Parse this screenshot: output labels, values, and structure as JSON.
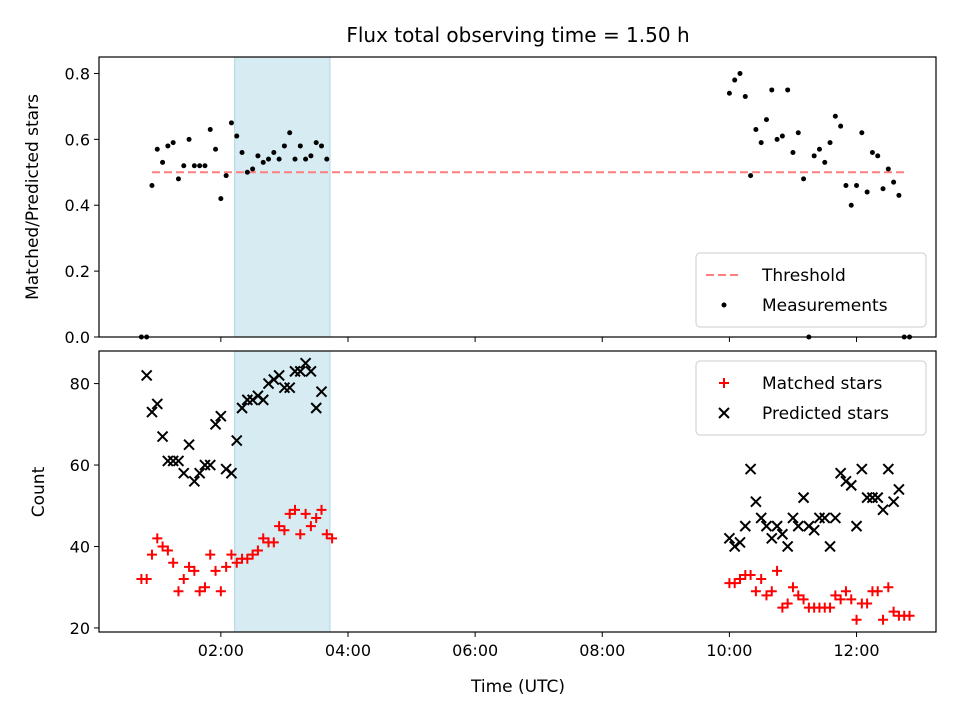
{
  "title": "Flux total observing time = 1.50 h",
  "xlabel": "Time (UTC)",
  "x_ticks": [
    "02:00",
    "04:00",
    "06:00",
    "08:00",
    "10:00",
    "12:00"
  ],
  "highlight_span": [
    "02:13",
    "03:43"
  ],
  "chart_data": [
    {
      "type": "scatter",
      "ylabel": "Matched/Predicted stars",
      "ylim": [
        0,
        0.85
      ],
      "y_ticks": [
        "0.0",
        "0.2",
        "0.4",
        "0.6",
        "0.8"
      ],
      "legend_placement": "lower-right",
      "threshold": {
        "name": "Threshold",
        "value": 0.5,
        "x_range": [
          "00:55",
          "12:45"
        ],
        "color": "#ff7f7f"
      },
      "series": [
        {
          "name": "Measurements",
          "color": "#000000",
          "points": [
            [
              "00:45",
              0.0
            ],
            [
              "00:50",
              0.0
            ],
            [
              "00:55",
              0.46
            ],
            [
              "01:00",
              0.57
            ],
            [
              "01:05",
              0.53
            ],
            [
              "01:10",
              0.58
            ],
            [
              "01:15",
              0.59
            ],
            [
              "01:20",
              0.48
            ],
            [
              "01:25",
              0.52
            ],
            [
              "01:30",
              0.6
            ],
            [
              "01:35",
              0.52
            ],
            [
              "01:40",
              0.52
            ],
            [
              "01:45",
              0.52
            ],
            [
              "01:50",
              0.63
            ],
            [
              "01:55",
              0.57
            ],
            [
              "02:00",
              0.42
            ],
            [
              "02:05",
              0.49
            ],
            [
              "02:10",
              0.65
            ],
            [
              "02:15",
              0.61
            ],
            [
              "02:20",
              0.56
            ],
            [
              "02:25",
              0.5
            ],
            [
              "02:30",
              0.51
            ],
            [
              "02:35",
              0.55
            ],
            [
              "02:40",
              0.53
            ],
            [
              "02:45",
              0.54
            ],
            [
              "02:50",
              0.56
            ],
            [
              "02:55",
              0.54
            ],
            [
              "03:00",
              0.58
            ],
            [
              "03:05",
              0.62
            ],
            [
              "03:10",
              0.54
            ],
            [
              "03:15",
              0.58
            ],
            [
              "03:20",
              0.54
            ],
            [
              "03:25",
              0.55
            ],
            [
              "03:30",
              0.59
            ],
            [
              "03:35",
              0.58
            ],
            [
              "03:40",
              0.54
            ],
            [
              "10:00",
              0.74
            ],
            [
              "10:05",
              0.78
            ],
            [
              "10:10",
              0.8
            ],
            [
              "10:15",
              0.73
            ],
            [
              "10:20",
              0.49
            ],
            [
              "10:25",
              0.63
            ],
            [
              "10:30",
              0.59
            ],
            [
              "10:35",
              0.66
            ],
            [
              "10:40",
              0.75
            ],
            [
              "10:45",
              0.6
            ],
            [
              "10:50",
              0.61
            ],
            [
              "10:55",
              0.75
            ],
            [
              "11:00",
              0.56
            ],
            [
              "11:05",
              0.62
            ],
            [
              "11:10",
              0.48
            ],
            [
              "11:15",
              0.0
            ],
            [
              "11:20",
              0.55
            ],
            [
              "11:25",
              0.57
            ],
            [
              "11:30",
              0.53
            ],
            [
              "11:35",
              0.59
            ],
            [
              "11:40",
              0.67
            ],
            [
              "11:45",
              0.64
            ],
            [
              "11:50",
              0.46
            ],
            [
              "11:55",
              0.4
            ],
            [
              "12:00",
              0.46
            ],
            [
              "12:05",
              0.62
            ],
            [
              "12:10",
              0.44
            ],
            [
              "12:15",
              0.56
            ],
            [
              "12:20",
              0.55
            ],
            [
              "12:25",
              0.45
            ],
            [
              "12:30",
              0.51
            ],
            [
              "12:35",
              0.47
            ],
            [
              "12:40",
              0.43
            ],
            [
              "12:45",
              0.0
            ],
            [
              "12:50",
              0.0
            ]
          ]
        }
      ]
    },
    {
      "type": "scatter",
      "ylabel": "Count",
      "ylim": [
        19,
        88
      ],
      "y_ticks": [
        "20",
        "40",
        "60",
        "80"
      ],
      "legend_placement": "upper-right",
      "series": [
        {
          "name": "Matched stars",
          "marker": "plus",
          "color": "#ff0000",
          "points": [
            [
              "00:45",
              32
            ],
            [
              "00:50",
              32
            ],
            [
              "00:55",
              38
            ],
            [
              "01:00",
              42
            ],
            [
              "01:05",
              40
            ],
            [
              "01:10",
              39
            ],
            [
              "01:15",
              36
            ],
            [
              "01:20",
              29
            ],
            [
              "01:25",
              32
            ],
            [
              "01:30",
              35
            ],
            [
              "01:35",
              34
            ],
            [
              "01:40",
              29
            ],
            [
              "01:45",
              30
            ],
            [
              "01:50",
              38
            ],
            [
              "01:55",
              34
            ],
            [
              "02:00",
              29
            ],
            [
              "02:05",
              35
            ],
            [
              "02:10",
              38
            ],
            [
              "02:15",
              36
            ],
            [
              "02:20",
              37
            ],
            [
              "02:25",
              37
            ],
            [
              "02:30",
              38
            ],
            [
              "02:35",
              39
            ],
            [
              "02:40",
              42
            ],
            [
              "02:45",
              41
            ],
            [
              "02:50",
              41
            ],
            [
              "02:55",
              45
            ],
            [
              "03:00",
              44
            ],
            [
              "03:05",
              48
            ],
            [
              "03:10",
              49
            ],
            [
              "03:15",
              43
            ],
            [
              "03:20",
              48
            ],
            [
              "03:25",
              45
            ],
            [
              "03:30",
              47
            ],
            [
              "03:35",
              49
            ],
            [
              "03:40",
              43
            ],
            [
              "03:45",
              42
            ],
            [
              "10:00",
              31
            ],
            [
              "10:05",
              31
            ],
            [
              "10:10",
              32
            ],
            [
              "10:15",
              33
            ],
            [
              "10:20",
              33
            ],
            [
              "10:25",
              29
            ],
            [
              "10:30",
              32
            ],
            [
              "10:35",
              28
            ],
            [
              "10:40",
              29
            ],
            [
              "10:45",
              34
            ],
            [
              "10:50",
              25
            ],
            [
              "10:55",
              26
            ],
            [
              "11:00",
              30
            ],
            [
              "11:05",
              28
            ],
            [
              "11:10",
              27
            ],
            [
              "11:15",
              25
            ],
            [
              "11:20",
              25
            ],
            [
              "11:25",
              25
            ],
            [
              "11:30",
              25
            ],
            [
              "11:35",
              25
            ],
            [
              "11:40",
              28
            ],
            [
              "11:45",
              27
            ],
            [
              "11:50",
              29
            ],
            [
              "11:55",
              27
            ],
            [
              "12:00",
              22
            ],
            [
              "12:05",
              26
            ],
            [
              "12:10",
              26
            ],
            [
              "12:15",
              29
            ],
            [
              "12:20",
              29
            ],
            [
              "12:25",
              22
            ],
            [
              "12:30",
              30
            ],
            [
              "12:35",
              24
            ],
            [
              "12:40",
              23
            ],
            [
              "12:45",
              23
            ],
            [
              "12:50",
              23
            ]
          ]
        },
        {
          "name": "Predicted stars",
          "marker": "x",
          "color": "#000000",
          "points": [
            [
              "00:50",
              82
            ],
            [
              "00:55",
              73
            ],
            [
              "01:00",
              75
            ],
            [
              "01:05",
              67
            ],
            [
              "01:10",
              61
            ],
            [
              "01:15",
              61
            ],
            [
              "01:20",
              61
            ],
            [
              "01:25",
              58
            ],
            [
              "01:30",
              65
            ],
            [
              "01:35",
              56
            ],
            [
              "01:40",
              58
            ],
            [
              "01:45",
              60
            ],
            [
              "01:50",
              60
            ],
            [
              "01:55",
              70
            ],
            [
              "02:00",
              72
            ],
            [
              "02:05",
              59
            ],
            [
              "02:10",
              58
            ],
            [
              "02:15",
              66
            ],
            [
              "02:20",
              74
            ],
            [
              "02:25",
              76
            ],
            [
              "02:30",
              76
            ],
            [
              "02:35",
              77
            ],
            [
              "02:40",
              76
            ],
            [
              "02:45",
              80
            ],
            [
              "02:50",
              81
            ],
            [
              "02:55",
              82
            ],
            [
              "03:00",
              79
            ],
            [
              "03:05",
              79
            ],
            [
              "03:10",
              83
            ],
            [
              "03:15",
              83
            ],
            [
              "03:20",
              85
            ],
            [
              "03:25",
              83
            ],
            [
              "03:30",
              74
            ],
            [
              "03:35",
              78
            ],
            [
              "10:00",
              42
            ],
            [
              "10:05",
              40
            ],
            [
              "10:10",
              41
            ],
            [
              "10:15",
              45
            ],
            [
              "10:20",
              59
            ],
            [
              "10:25",
              51
            ],
            [
              "10:30",
              47
            ],
            [
              "10:35",
              45
            ],
            [
              "10:40",
              42
            ],
            [
              "10:45",
              45
            ],
            [
              "10:50",
              43
            ],
            [
              "10:55",
              40
            ],
            [
              "11:00",
              47
            ],
            [
              "11:05",
              45
            ],
            [
              "11:10",
              52
            ],
            [
              "11:15",
              45
            ],
            [
              "11:20",
              44
            ],
            [
              "11:25",
              47
            ],
            [
              "11:30",
              47
            ],
            [
              "11:35",
              40
            ],
            [
              "11:40",
              47
            ],
            [
              "11:45",
              58
            ],
            [
              "11:50",
              56
            ],
            [
              "11:55",
              55
            ],
            [
              "12:00",
              45
            ],
            [
              "12:05",
              59
            ],
            [
              "12:10",
              52
            ],
            [
              "12:15",
              52
            ],
            [
              "12:20",
              52
            ],
            [
              "12:25",
              49
            ],
            [
              "12:30",
              59
            ],
            [
              "12:35",
              51
            ],
            [
              "12:40",
              54
            ]
          ]
        }
      ]
    }
  ]
}
